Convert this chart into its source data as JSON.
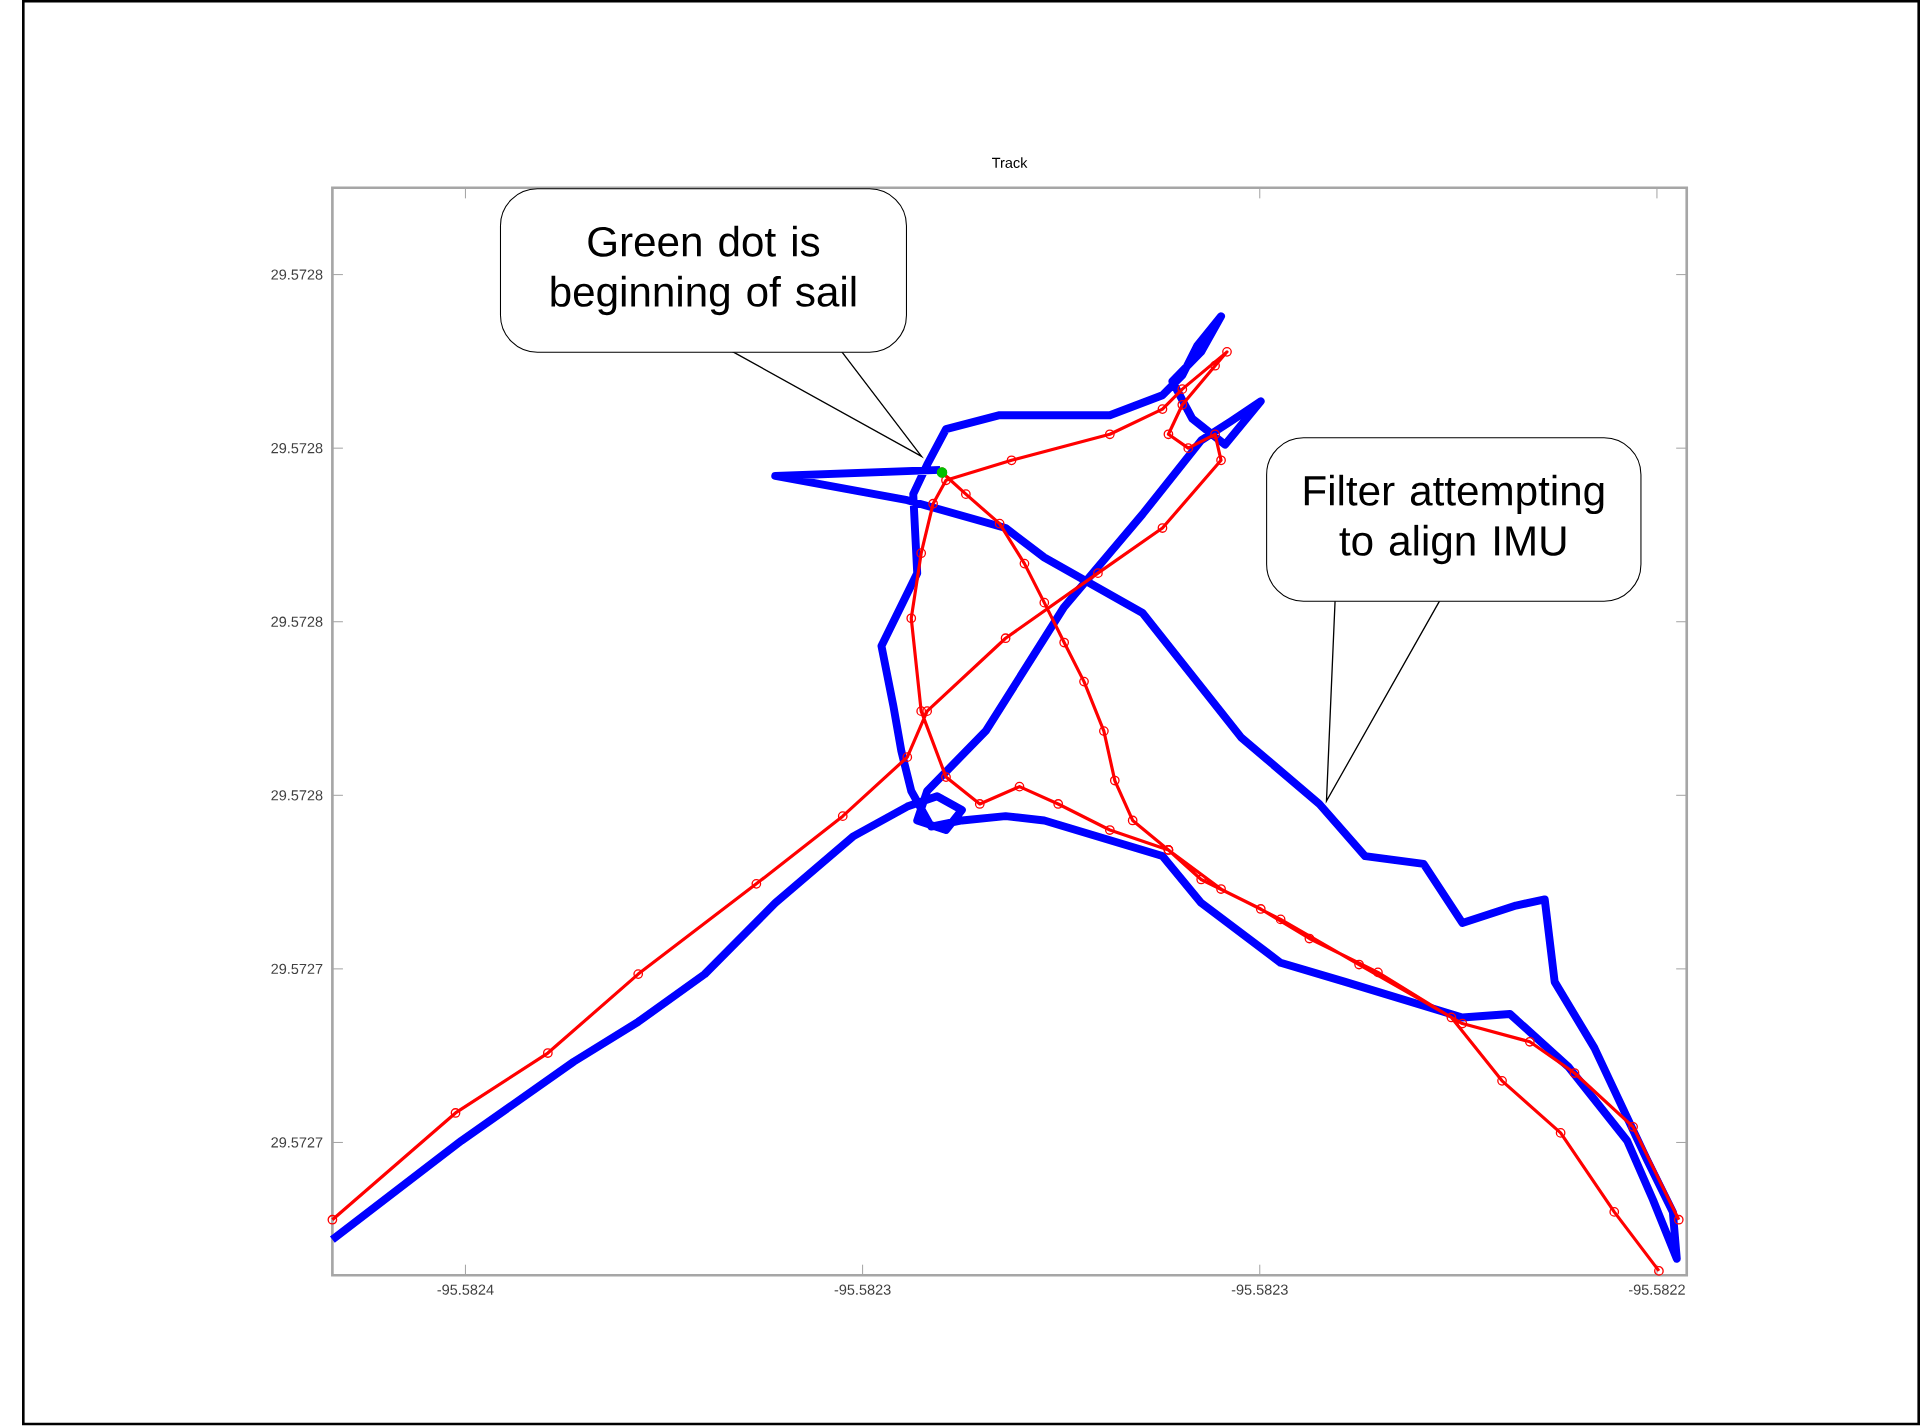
{
  "chart_data": {
    "type": "line",
    "title": "Track",
    "xlim": [
      -95.5823734,
      -95.582237
    ],
    "ylim": [
      29.5727047,
      29.57283
    ],
    "xticks": [
      {
        "value": -95.58236,
        "label": "-95.5824"
      },
      {
        "value": -95.58232,
        "label": "-95.5823"
      },
      {
        "value": -95.58228,
        "label": "-95.5823"
      },
      {
        "value": -95.58224,
        "label": "-95.5822"
      }
    ],
    "yticks": [
      {
        "value": 29.57272,
        "label": "29.5727"
      },
      {
        "value": 29.57274,
        "label": "29.5727"
      },
      {
        "value": 29.57276,
        "label": "29.5728"
      },
      {
        "value": 29.57278,
        "label": "29.5728"
      },
      {
        "value": 29.5728,
        "label": "29.5728"
      },
      {
        "value": 29.57282,
        "label": "29.5728"
      }
    ],
    "annotations": [
      "Green dot is beginning of sail",
      "Filter attempting to align IMU"
    ],
    "series": [
      {
        "color": "#0000ff",
        "marker": "none",
        "x": [
          -95.5823734,
          -95.5823604,
          -95.5823491,
          -95.5823426,
          -95.5823359,
          -95.5823288,
          -95.5823209,
          -95.5823155,
          -95.5823125,
          -95.58231,
          -95.5823116,
          -95.5823145,
          -95.5823135,
          -95.5823076,
          -95.5822997,
          -95.5822918,
          -95.5822859,
          -95.5822829,
          -95.5822799,
          -95.5822835,
          -95.5822868,
          -95.5822888,
          -95.5822859,
          -95.5822839,
          -95.5822863,
          -95.5822878,
          -95.5822898,
          -95.5822951,
          -95.5823062,
          -95.5823116,
          -95.5823135,
          -95.5823149,
          -95.5823145,
          -95.5823181,
          -95.5823169,
          -95.5823161,
          -95.5823151,
          -95.5823131,
          -95.58231,
          -95.5823056,
          -95.5823017,
          -95.5822898,
          -95.5822859,
          -95.5822779,
          -95.5822714,
          -95.5822596,
          -95.5822548,
          -95.5822489,
          -95.582243,
          -95.5822404,
          -95.582238,
          -95.5822384,
          -95.582241,
          -95.5822463,
          -95.5822503,
          -95.5822513,
          -95.5822542,
          -95.5822596,
          -95.5822635,
          -95.5822694,
          -95.582274,
          -95.5822819,
          -95.5822918,
          -95.5823017,
          -95.5823056,
          -95.5823155,
          -95.5823288,
          -95.5823122
        ],
        "values": [
          29.5727088,
          29.5727202,
          29.5727293,
          29.5727339,
          29.5727394,
          29.5727476,
          29.5727553,
          29.5727587,
          29.5727599,
          29.5727583,
          29.572756,
          29.5727571,
          29.5727605,
          29.5727674,
          29.5727817,
          29.5727924,
          29.5728009,
          29.5728031,
          29.5728054,
          29.5728004,
          29.5728034,
          29.5728077,
          29.5728111,
          29.5728152,
          29.5728118,
          29.5728084,
          29.5728061,
          29.5728038,
          29.5728038,
          29.5728022,
          29.5727981,
          29.5727947,
          29.5727856,
          29.5727772,
          29.5727703,
          29.5727651,
          29.5727605,
          29.5727564,
          29.5727571,
          29.5727576,
          29.5727571,
          29.572753,
          29.5727476,
          29.5727407,
          29.5727385,
          29.5727344,
          29.5727348,
          29.5727287,
          29.5727202,
          29.5727134,
          29.5727066,
          29.572712,
          29.572718,
          29.5727309,
          29.5727385,
          29.572748,
          29.5727473,
          29.5727453,
          29.5727521,
          29.572753,
          29.572759,
          29.5727667,
          29.572781,
          29.5727874,
          29.5727908,
          29.572794,
          29.5727968,
          29.5727975
        ]
      },
      {
        "color": "#ff0000",
        "marker": "circle",
        "x": [
          -95.582312,
          -95.5823096,
          -95.5823062,
          -95.5823037,
          -95.5823017,
          -95.5822997,
          -95.5822977,
          -95.5822957,
          -95.5822946,
          -95.5822928,
          -95.5822892,
          -95.5822859,
          -95.5822799,
          -95.582275,
          -95.5822681,
          -95.5822607,
          -95.5822556,
          -95.5822497,
          -95.5822443,
          -95.5822398,
          null,
          -95.5823734,
          -95.582361,
          -95.5823517,
          -95.5823426,
          -95.5823307,
          -95.582322,
          -95.5823155,
          -95.5823135,
          -95.5823056,
          -95.5822963,
          -95.5822898,
          -95.5822839,
          -95.5822845,
          -95.5822872,
          -95.5822892,
          -95.5822878,
          -95.5822845,
          -95.5822833,
          -95.5822878,
          -95.5822898,
          -95.5822951,
          -95.582305,
          -95.5823116,
          -95.5823129,
          -95.5823141,
          -95.5823151,
          -95.5823141,
          -95.5823116,
          -95.5823082,
          -95.5823042,
          -95.5823003,
          -95.5822951,
          -95.5822892,
          -95.5822839,
          -95.5822779,
          -95.58227,
          -95.5822596,
          -95.5822528,
          -95.5822483,
          -95.5822424,
          -95.5822378
        ],
        "values": [
          29.5727972,
          29.5727947,
          29.5727913,
          29.5727867,
          29.5727822,
          29.5727776,
          29.5727731,
          29.5727674,
          29.5727617,
          29.5727571,
          29.5727537,
          29.5727503,
          29.5727469,
          29.5727435,
          29.5727396,
          29.5727344,
          29.5727271,
          29.5727211,
          29.572712,
          29.5727052,
          null,
          29.5727111,
          29.5727234,
          29.5727303,
          29.5727394,
          29.5727498,
          29.5727576,
          29.5727644,
          29.5727697,
          29.5727781,
          29.5727856,
          29.5727908,
          29.5727986,
          29.5728016,
          29.5728,
          29.5728016,
          29.572805,
          29.5728095,
          29.5728111,
          29.5728068,
          29.5728045,
          29.5728016,
          29.5727986,
          29.5727963,
          29.5727936,
          29.5727879,
          29.5727804,
          29.5727697,
          29.5727621,
          29.572759,
          29.572761,
          29.572759,
          29.572756,
          29.5727537,
          29.5727492,
          29.5727457,
          29.5727405,
          29.5727337,
          29.5727316,
          29.572728,
          29.5727218,
          29.5727111
        ]
      },
      {
        "type": "scatter",
        "color": "#00c000",
        "marker": "circle",
        "x": [
          -95.582312
        ],
        "values": [
          29.5727972
        ]
      }
    ]
  }
}
